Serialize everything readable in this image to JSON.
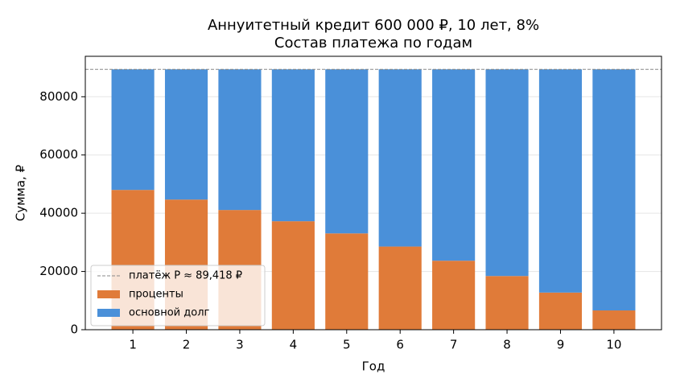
{
  "chart_data": {
    "type": "stacked-bar",
    "title": "Аннуитетный кредит 600 000 ₽, 10 лет, 8%",
    "subtitle": "Состав платежа по годам",
    "x_label": "Год",
    "y_label": "Сумма, ₽",
    "x": [
      1,
      2,
      3,
      4,
      5,
      6,
      7,
      8,
      9,
      10
    ],
    "series": [
      {
        "name": "проценты",
        "color": "#e07b39",
        "values": [
          48000,
          44687,
          41108,
          37243,
          33069,
          28561,
          23693,
          18435,
          12756,
          6623
        ]
      },
      {
        "name": "основной долг",
        "color": "#4a90d9",
        "values": [
          41418,
          44731,
          48310,
          52175,
          56349,
          60857,
          65725,
          70983,
          76662,
          82795
        ]
      }
    ],
    "hline": {
      "value": 89418,
      "label": "платёж P ≈ 89,418 ₽",
      "color": "#888888"
    },
    "xlim": [
      0.11,
      10.89
    ],
    "xticks": [
      1,
      2,
      3,
      4,
      5,
      6,
      7,
      8,
      9,
      10
    ],
    "ylim": [
      0,
      93890
    ],
    "yticks": [
      0,
      20000,
      40000,
      60000,
      80000
    ],
    "grid": true,
    "legend": "lower-left"
  }
}
